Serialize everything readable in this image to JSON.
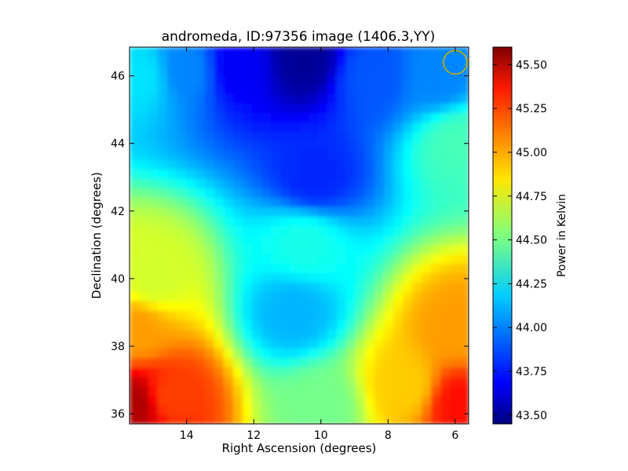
{
  "chart_data": {
    "type": "heatmap",
    "title": "andromeda, ID:97356 image (1406.3,YY)",
    "xlabel": "Right Ascension (degrees)",
    "ylabel": "Declination (degrees)",
    "xlim": [
      15.7,
      5.6
    ],
    "ylim": [
      35.7,
      46.85
    ],
    "x_ticks": [
      14,
      12,
      10,
      8,
      6
    ],
    "x_tick_labels": [
      "14",
      "12",
      "10",
      "8",
      "6"
    ],
    "y_ticks": [
      36,
      38,
      40,
      42,
      44,
      46
    ],
    "y_tick_labels": [
      "36",
      "38",
      "40",
      "42",
      "44",
      "46"
    ],
    "colorbar": {
      "label": "Power in Kelvin",
      "colormap": "jet",
      "range": [
        43.45,
        45.6
      ],
      "ticks": [
        43.5,
        43.75,
        44.0,
        44.25,
        44.5,
        44.75,
        45.0,
        45.25,
        45.5
      ],
      "tick_labels": [
        "43.50",
        "43.75",
        "44.00",
        "44.25",
        "44.50",
        "44.75",
        "45.00",
        "45.25",
        "45.50"
      ]
    },
    "grid": false,
    "field_samples": [
      {
        "ra": 15.4,
        "dec": 46.0,
        "value": 44.2
      },
      {
        "ra": 14.0,
        "dec": 46.2,
        "value": 44.0
      },
      {
        "ra": 12.5,
        "dec": 46.3,
        "value": 43.7
      },
      {
        "ra": 10.5,
        "dec": 46.5,
        "value": 43.5
      },
      {
        "ra": 10.2,
        "dec": 43.0,
        "value": 43.8
      },
      {
        "ra": 8.5,
        "dec": 46.0,
        "value": 43.9
      },
      {
        "ra": 6.5,
        "dec": 46.0,
        "value": 44.0
      },
      {
        "ra": 5.9,
        "dec": 44.0,
        "value": 44.4
      },
      {
        "ra": 10.5,
        "dec": 41.0,
        "value": 44.3
      },
      {
        "ra": 10.8,
        "dec": 39.0,
        "value": 44.1
      },
      {
        "ra": 15.0,
        "dec": 40.0,
        "value": 44.7
      },
      {
        "ra": 15.5,
        "dec": 38.5,
        "value": 45.0
      },
      {
        "ra": 15.5,
        "dec": 36.3,
        "value": 45.5
      },
      {
        "ra": 14.5,
        "dec": 36.5,
        "value": 45.2
      },
      {
        "ra": 10.0,
        "dec": 36.2,
        "value": 44.5
      },
      {
        "ra": 7.5,
        "dec": 36.8,
        "value": 44.9
      },
      {
        "ra": 5.9,
        "dec": 36.3,
        "value": 45.3
      },
      {
        "ra": 5.9,
        "dec": 38.5,
        "value": 45.0
      }
    ],
    "annotation": {
      "shape": "circle",
      "ra": 6.0,
      "dec": 46.4,
      "color": "#c8b400"
    }
  }
}
